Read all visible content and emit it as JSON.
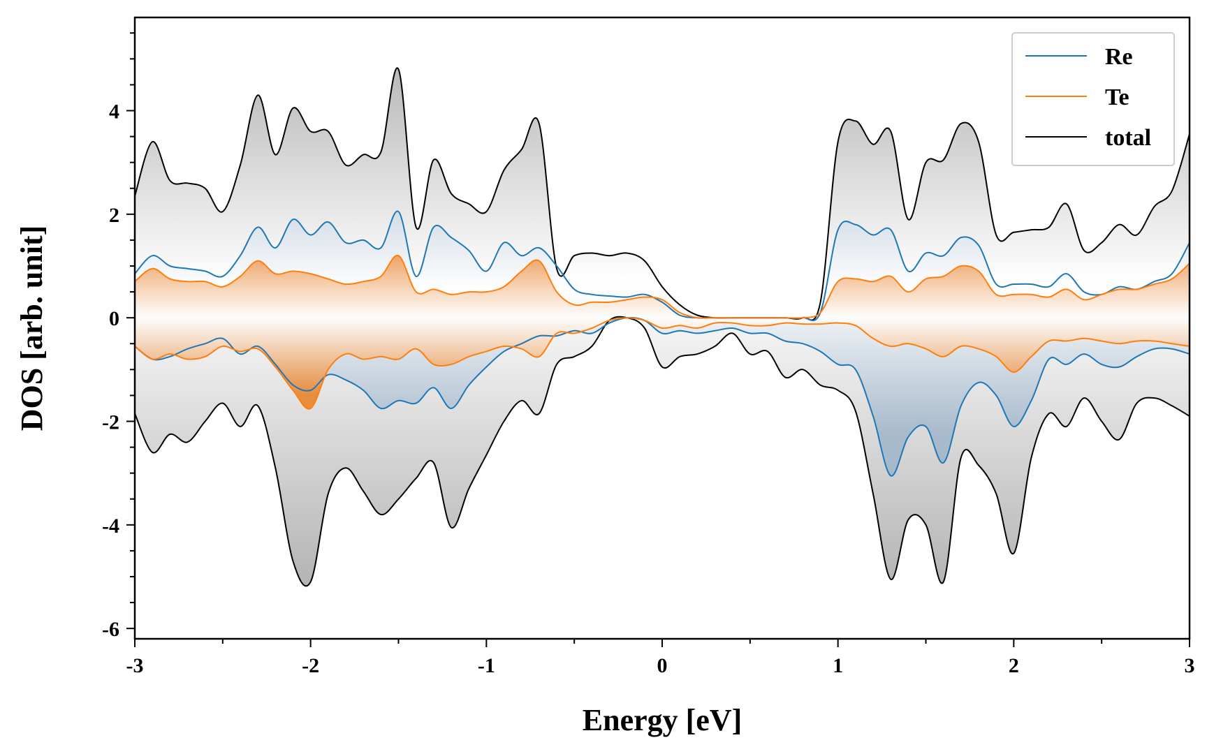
{
  "chart_data": {
    "type": "line",
    "xlabel": "Energy [eV]",
    "ylabel": "DOS [arb. unit]",
    "xlim": [
      -3,
      3
    ],
    "ylim": [
      -6.2,
      5.8
    ],
    "x_ticks": [
      -3,
      -2,
      -1,
      0,
      1,
      2,
      3
    ],
    "x_tick_labels": [
      "-3",
      "-2",
      "-1",
      "0",
      "1",
      "2",
      "3"
    ],
    "y_ticks": [
      -6,
      -4,
      -2,
      0,
      2,
      4
    ],
    "y_tick_labels": [
      "-6",
      "-4",
      "-2",
      "0",
      "2",
      "4"
    ],
    "legend_position": "top-right",
    "x": [
      -3.0,
      -2.9,
      -2.8,
      -2.7,
      -2.6,
      -2.5,
      -2.4,
      -2.3,
      -2.2,
      -2.1,
      -2.0,
      -1.9,
      -1.8,
      -1.7,
      -1.6,
      -1.5,
      -1.4,
      -1.3,
      -1.2,
      -1.1,
      -1.0,
      -0.9,
      -0.8,
      -0.7,
      -0.6,
      -0.5,
      -0.4,
      -0.3,
      -0.2,
      -0.1,
      0.0,
      0.1,
      0.2,
      0.3,
      0.4,
      0.5,
      0.6,
      0.7,
      0.8,
      0.9,
      1.0,
      1.1,
      1.2,
      1.3,
      1.4,
      1.5,
      1.6,
      1.7,
      1.8,
      1.9,
      2.0,
      2.1,
      2.2,
      2.3,
      2.4,
      2.5,
      2.6,
      2.7,
      2.8,
      2.9,
      3.0
    ],
    "series": [
      {
        "name": "Re",
        "color": "#1f77b4",
        "up": [
          0.85,
          1.2,
          1.0,
          0.95,
          0.9,
          0.8,
          1.2,
          1.75,
          1.35,
          1.9,
          1.6,
          1.85,
          1.45,
          1.5,
          1.35,
          2.05,
          0.8,
          1.75,
          1.55,
          1.3,
          0.9,
          1.45,
          1.2,
          1.35,
          1.0,
          0.55,
          0.45,
          0.42,
          0.4,
          0.45,
          0.3,
          0.05,
          0.0,
          0.0,
          0.0,
          0.0,
          0.0,
          0.0,
          0.0,
          0.1,
          1.7,
          1.8,
          1.6,
          1.7,
          0.9,
          1.25,
          1.2,
          1.55,
          1.4,
          0.65,
          0.65,
          0.65,
          0.6,
          0.85,
          0.5,
          0.45,
          0.6,
          0.55,
          0.7,
          0.85,
          1.45
        ],
        "down": [
          -0.55,
          -0.8,
          -0.75,
          -0.6,
          -0.5,
          -0.4,
          -0.7,
          -0.55,
          -0.9,
          -1.3,
          -1.4,
          -1.1,
          -1.2,
          -1.4,
          -1.75,
          -1.6,
          -1.65,
          -1.35,
          -1.75,
          -1.3,
          -0.95,
          -0.65,
          -0.5,
          -0.35,
          -0.35,
          -0.25,
          -0.3,
          -0.1,
          0.0,
          -0.05,
          -0.3,
          -0.25,
          -0.3,
          -0.25,
          -0.2,
          -0.3,
          -0.3,
          -0.45,
          -0.5,
          -0.65,
          -0.9,
          -1.0,
          -1.9,
          -3.05,
          -2.3,
          -2.1,
          -2.8,
          -1.7,
          -1.25,
          -1.5,
          -2.1,
          -1.6,
          -0.8,
          -0.9,
          -0.7,
          -0.9,
          -0.95,
          -0.75,
          -0.6,
          -0.6,
          -0.7
        ]
      },
      {
        "name": "Te",
        "color": "#ff7f0e",
        "up": [
          0.7,
          0.95,
          0.75,
          0.7,
          0.7,
          0.6,
          0.8,
          1.1,
          0.85,
          0.9,
          0.85,
          0.75,
          0.65,
          0.7,
          0.8,
          1.2,
          0.5,
          0.55,
          0.45,
          0.5,
          0.5,
          0.6,
          0.9,
          1.1,
          0.5,
          0.25,
          0.3,
          0.3,
          0.35,
          0.4,
          0.35,
          0.1,
          0.0,
          0.0,
          0.0,
          0.0,
          0.0,
          0.0,
          0.0,
          0.1,
          0.7,
          0.75,
          0.7,
          0.8,
          0.5,
          0.75,
          0.8,
          1.0,
          0.9,
          0.45,
          0.45,
          0.45,
          0.4,
          0.55,
          0.35,
          0.45,
          0.55,
          0.55,
          0.65,
          0.75,
          1.05
        ],
        "down": [
          -0.55,
          -0.8,
          -0.7,
          -0.8,
          -0.75,
          -0.55,
          -0.65,
          -0.6,
          -0.95,
          -1.4,
          -1.75,
          -1.0,
          -0.7,
          -0.8,
          -0.75,
          -0.8,
          -0.6,
          -0.9,
          -0.9,
          -0.75,
          -0.65,
          -0.55,
          -0.6,
          -0.75,
          -0.3,
          -0.3,
          -0.2,
          -0.05,
          0.0,
          -0.05,
          -0.2,
          -0.15,
          -0.2,
          -0.1,
          -0.1,
          -0.15,
          -0.15,
          -0.1,
          -0.12,
          -0.12,
          -0.1,
          -0.15,
          -0.4,
          -0.55,
          -0.5,
          -0.6,
          -0.75,
          -0.55,
          -0.6,
          -0.75,
          -1.05,
          -0.75,
          -0.45,
          -0.45,
          -0.4,
          -0.45,
          -0.5,
          -0.45,
          -0.45,
          -0.5,
          -0.55
        ]
      },
      {
        "name": "total",
        "color": "#000000",
        "up": [
          2.35,
          3.4,
          2.65,
          2.6,
          2.5,
          2.05,
          2.95,
          4.3,
          3.15,
          4.05,
          3.6,
          3.6,
          2.95,
          3.15,
          3.2,
          4.8,
          1.75,
          3.05,
          2.4,
          2.2,
          2.05,
          2.85,
          3.25,
          3.75,
          0.95,
          1.2,
          1.25,
          1.2,
          1.25,
          1.1,
          0.6,
          0.25,
          0.05,
          0.0,
          0.0,
          0.0,
          0.0,
          0.0,
          0.0,
          0.3,
          3.4,
          3.8,
          3.35,
          3.6,
          1.9,
          3.0,
          3.05,
          3.75,
          3.4,
          1.6,
          1.65,
          1.7,
          1.75,
          2.2,
          1.3,
          1.45,
          1.8,
          1.6,
          2.15,
          2.45,
          3.55
        ],
        "down": [
          -1.85,
          -2.6,
          -2.25,
          -2.4,
          -2.0,
          -1.65,
          -2.1,
          -1.7,
          -2.9,
          -4.7,
          -5.1,
          -3.4,
          -2.9,
          -3.35,
          -3.8,
          -3.5,
          -3.1,
          -2.8,
          -4.05,
          -3.3,
          -2.65,
          -2.0,
          -1.6,
          -1.85,
          -0.9,
          -0.75,
          -0.55,
          -0.05,
          0.0,
          -0.2,
          -0.95,
          -0.75,
          -0.7,
          -0.55,
          -0.3,
          -0.7,
          -0.65,
          -1.15,
          -1.0,
          -1.3,
          -1.4,
          -1.8,
          -3.4,
          -5.05,
          -3.9,
          -4.0,
          -5.1,
          -2.7,
          -2.85,
          -3.4,
          -4.55,
          -2.7,
          -1.85,
          -2.1,
          -1.55,
          -2.0,
          -2.35,
          -1.65,
          -1.55,
          -1.7,
          -1.9
        ]
      }
    ]
  }
}
